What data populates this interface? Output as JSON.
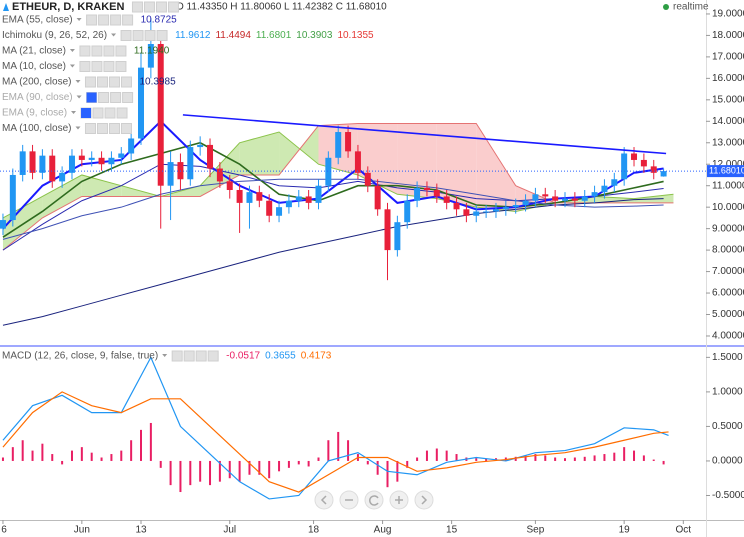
{
  "chart_data": [
    {
      "type": "candlestick",
      "title": "ETHEUR, D, KRAKEN",
      "ohlc_label": "O 11.43350 H 11.80060 L 11.42382 C 11.68010",
      "status": "realtime",
      "xlim": [
        -16.6,
        126.6
      ],
      "ylim": [
        3.58,
        19.65
      ],
      "yticks": [
        {
          "value": 19,
          "label": "19.00000"
        },
        {
          "value": 18,
          "label": "18.00000"
        },
        {
          "value": 17,
          "label": "17.00000"
        },
        {
          "value": 16,
          "label": "16.00000"
        },
        {
          "value": 15,
          "label": "15.00000"
        },
        {
          "value": 14,
          "label": "14.00000"
        },
        {
          "value": 13,
          "label": "13.00000"
        },
        {
          "value": 12,
          "label": "12.00000"
        },
        {
          "value": 11,
          "label": "11.00000"
        },
        {
          "value": 10,
          "label": "10.00000"
        },
        {
          "value": 9,
          "label": "9.00000"
        },
        {
          "value": 8,
          "label": "8.00000"
        },
        {
          "value": 7,
          "label": "7.00000"
        },
        {
          "value": 6,
          "label": "6.00000"
        },
        {
          "value": 5,
          "label": "5.00000"
        },
        {
          "value": 4,
          "label": "4.00000"
        }
      ],
      "grid": false,
      "last_price": {
        "value": 11.6801,
        "label": "11.68010",
        "color": "#2962ff"
      },
      "candles": {
        "up_color": "#2196f3",
        "down_color": "#e8203a",
        "x": [
          -16,
          -14,
          -12,
          -10,
          -8,
          -6,
          -4,
          -2,
          0,
          2,
          4,
          6,
          8,
          10,
          12,
          14,
          16,
          18,
          20,
          22,
          24,
          26,
          28,
          30,
          32,
          34,
          36,
          38,
          40,
          42,
          44,
          46,
          48,
          50,
          52,
          54,
          56,
          58,
          60,
          62,
          64,
          66,
          68,
          70,
          72,
          74,
          76,
          78,
          80,
          82,
          84,
          86,
          88,
          90,
          92,
          94,
          96,
          98,
          100,
          102,
          104,
          106,
          108,
          110,
          112,
          114,
          116,
          118
        ],
        "open": [
          9.0,
          9.4,
          11.5,
          12.6,
          11.6,
          12.4,
          11.2,
          11.6,
          12.4,
          12.2,
          12.3,
          12.0,
          12.3,
          12.5,
          13.2,
          16.5,
          17.6,
          11.0,
          12.1,
          11.3,
          12.8,
          12.9,
          11.8,
          11.2,
          10.8,
          10.2,
          10.7,
          10.3,
          9.6,
          10.0,
          10.3,
          10.5,
          10.2,
          11.0,
          12.3,
          13.5,
          12.6,
          11.6,
          11.0,
          9.9,
          8.0,
          9.3,
          10.3,
          10.9,
          10.8,
          10.5,
          10.2,
          9.9,
          9.6,
          9.8,
          9.8,
          9.9,
          10.0,
          10.1,
          10.3,
          10.6,
          10.5,
          10.3,
          10.4,
          10.3,
          10.5,
          10.7,
          11.0,
          11.3,
          12.5,
          12.2,
          11.9,
          11.43
        ],
        "high": [
          9.7,
          11.8,
          12.9,
          12.9,
          12.7,
          12.7,
          11.9,
          12.7,
          12.7,
          12.6,
          12.6,
          12.6,
          12.8,
          13.5,
          17.2,
          18.8,
          18.2,
          12.6,
          12.5,
          13.1,
          13.3,
          13.2,
          12.1,
          11.5,
          11.1,
          11.0,
          11.0,
          10.6,
          10.3,
          10.6,
          10.8,
          10.8,
          11.3,
          12.6,
          13.8,
          13.8,
          12.9,
          11.9,
          11.3,
          10.2,
          9.6,
          10.6,
          11.2,
          11.2,
          11.1,
          10.8,
          10.5,
          10.2,
          10.1,
          10.1,
          10.2,
          10.3,
          10.4,
          10.6,
          10.9,
          10.9,
          10.8,
          10.7,
          10.7,
          10.8,
          11.0,
          11.3,
          11.6,
          12.8,
          12.8,
          12.5,
          12.2,
          11.8
        ],
        "low": [
          8.7,
          9.1,
          11.2,
          11.3,
          11.3,
          10.9,
          10.9,
          11.3,
          11.9,
          11.9,
          11.7,
          11.7,
          12.0,
          12.2,
          12.9,
          16.0,
          9.0,
          9.4,
          10.8,
          11.0,
          12.4,
          11.4,
          10.9,
          10.4,
          8.8,
          9.0,
          10.0,
          9.3,
          9.3,
          9.7,
          10.0,
          9.9,
          9.9,
          10.7,
          12.0,
          12.3,
          11.3,
          10.7,
          9.6,
          6.6,
          7.7,
          9.0,
          10.0,
          10.5,
          10.2,
          9.9,
          9.6,
          9.3,
          9.3,
          9.5,
          9.5,
          9.6,
          9.7,
          9.8,
          10.0,
          10.2,
          10.0,
          10.0,
          10.0,
          10.0,
          10.2,
          10.4,
          10.7,
          11.0,
          11.9,
          11.6,
          11.3,
          11.42
        ],
        "close": [
          9.4,
          11.5,
          12.6,
          11.6,
          12.4,
          11.2,
          11.6,
          12.4,
          12.2,
          12.3,
          12.0,
          12.3,
          12.5,
          13.2,
          16.5,
          17.6,
          11.0,
          12.1,
          11.3,
          12.8,
          12.9,
          11.8,
          11.2,
          10.8,
          10.2,
          10.7,
          10.3,
          9.6,
          10.0,
          10.3,
          10.5,
          10.2,
          11.0,
          12.3,
          13.5,
          12.6,
          11.6,
          11.0,
          9.9,
          8.0,
          9.3,
          10.3,
          10.9,
          10.8,
          10.5,
          10.2,
          9.9,
          9.6,
          9.8,
          9.8,
          9.9,
          10.0,
          10.1,
          10.3,
          10.6,
          10.5,
          10.3,
          10.4,
          10.3,
          10.5,
          10.7,
          11.0,
          11.3,
          12.5,
          12.2,
          11.9,
          11.6,
          11.68
        ]
      },
      "indicator_x": [
        -16,
        -8,
        0,
        8,
        16,
        24,
        32,
        40,
        48,
        56,
        64,
        72,
        80,
        88,
        96,
        104,
        112,
        118
      ],
      "ichimoku_x": [
        -16,
        -8,
        0,
        8,
        16,
        24,
        32,
        40,
        48,
        56,
        64,
        72,
        80,
        88,
        96,
        104,
        112,
        120
      ],
      "series": [
        {
          "name": "EMA (55, close)",
          "readings": [
            "10.8725"
          ],
          "reading_colors": [
            "#2a2ab0"
          ],
          "color": "#2a2ab0",
          "width": 1,
          "values": [
            8.0,
            9.2,
            10.3,
            11.0,
            12.0,
            11.9,
            11.5,
            11.0,
            10.9,
            11.2,
            10.9,
            10.7,
            10.4,
            10.3,
            10.4,
            10.5,
            10.7,
            10.87
          ]
        },
        {
          "name": "Ichimoku (9, 26, 52, 26)",
          "readings": [
            "11.9612",
            "11.4494",
            "11.6801",
            "10.3903",
            "10.1355"
          ],
          "reading_colors": [
            "#2196f3",
            "#c62828",
            "#4caf50",
            "#43a047",
            "#e53935"
          ],
          "span_a": [
            9.5,
            10.5,
            11.5,
            11.0,
            10.5,
            11.0,
            13.0,
            13.5,
            12.0,
            11.5,
            10.6,
            10.4,
            10.0,
            9.8,
            10.2,
            10.5,
            10.4,
            10.6
          ],
          "span_b": [
            8.0,
            9.5,
            10.5,
            10.5,
            10.5,
            10.5,
            11.5,
            11.5,
            13.8,
            13.9,
            13.9,
            13.9,
            13.9,
            11.0,
            10.2,
            10.2,
            10.2,
            10.2
          ],
          "span_a_color": "#8bc34a",
          "span_b_color": "#e57373",
          "cloud_up": "#c5e5a5",
          "cloud_down": "#f9c4c4"
        },
        {
          "name": "MA (21, close)",
          "readings": [
            "11.1940"
          ],
          "reading_colors": [
            "#2e6b1e"
          ],
          "color": "#2e6b1e",
          "width": 1.6,
          "values": [
            8.6,
            9.8,
            11.2,
            12.0,
            12.5,
            13.0,
            12.0,
            10.6,
            10.3,
            11.0,
            11.0,
            10.8,
            10.1,
            10.0,
            10.2,
            10.5,
            10.9,
            11.2
          ]
        },
        {
          "name": "MA (10, close)",
          "color": "#1a1aff",
          "width": 2,
          "values": [
            9.0,
            11.0,
            12.0,
            12.2,
            14.0,
            12.2,
            11.0,
            10.2,
            10.4,
            11.8,
            10.2,
            10.5,
            9.9,
            10.0,
            10.4,
            10.5,
            11.6,
            11.8
          ]
        },
        {
          "name": "MA (200, close)",
          "readings": [
            "10.3985"
          ],
          "reading_colors": [
            "#1a237e"
          ],
          "color": "#1a237e",
          "width": 1,
          "values": [
            4.5,
            4.9,
            5.4,
            5.9,
            6.4,
            6.9,
            7.4,
            7.9,
            8.3,
            8.7,
            9.1,
            9.4,
            9.7,
            9.9,
            10.1,
            10.2,
            10.35,
            10.4
          ]
        },
        {
          "name": "EMA (90, close)",
          "visible": false
        },
        {
          "name": "EMA (9, close)",
          "visible": false
        },
        {
          "name": "MA (100, close)",
          "color": "#3f51b5",
          "width": 1,
          "values": [
            8.5,
            9.0,
            9.6,
            10.0,
            10.6,
            11.0,
            11.2,
            11.3,
            11.3,
            11.3,
            11.1,
            10.9,
            10.6,
            10.3,
            10.1,
            10.0,
            10.05,
            10.1
          ]
        }
      ],
      "trendline": {
        "x": [
          20.5,
          118.5
        ],
        "values": [
          14.3,
          12.5
        ],
        "color": "#1a1aff"
      }
    },
    {
      "type": "macd",
      "name": "MACD (12, 26, close, 9, false, true)",
      "readings": [
        "-0.0517",
        "0.3655",
        "0.4173"
      ],
      "reading_colors": [
        "#e91e63",
        "#2196f3",
        "#ff6d00"
      ],
      "xlim": [
        -16.6,
        126.6
      ],
      "xticks": [
        {
          "value": -16,
          "label": "6"
        },
        {
          "value": 0,
          "label": "Jun"
        },
        {
          "value": 12,
          "label": "13"
        },
        {
          "value": 30,
          "label": "Jul"
        },
        {
          "value": 47,
          "label": "18"
        },
        {
          "value": 61,
          "label": "Aug"
        },
        {
          "value": 75,
          "label": "15"
        },
        {
          "value": 92,
          "label": "Sep"
        },
        {
          "value": 110,
          "label": "19"
        },
        {
          "value": 122,
          "label": "Oct"
        }
      ],
      "ylim": [
        -0.855,
        1.65
      ],
      "yticks": [
        {
          "value": 1.5,
          "label": "1.5000"
        },
        {
          "value": 1,
          "label": "1.0000"
        },
        {
          "value": 0.5,
          "label": "0.5000"
        },
        {
          "value": 0,
          "label": "0.0000"
        },
        {
          "value": -0.5,
          "label": "-0.5000"
        }
      ],
      "histogram": {
        "color": "#e91e63",
        "values": [
          0.05,
          0.2,
          0.3,
          0.15,
          0.25,
          0.1,
          -0.05,
          0.15,
          0.2,
          0.12,
          0.05,
          0.1,
          0.15,
          0.3,
          0.45,
          0.55,
          -0.1,
          -0.35,
          -0.45,
          -0.35,
          -0.3,
          -0.35,
          -0.3,
          -0.25,
          -0.3,
          -0.2,
          -0.2,
          -0.25,
          -0.15,
          -0.1,
          -0.05,
          -0.08,
          0.05,
          0.3,
          0.42,
          0.3,
          0.1,
          -0.05,
          -0.2,
          -0.38,
          -0.3,
          -0.1,
          0.05,
          0.15,
          0.18,
          0.15,
          0.1,
          0.05,
          0.04,
          0.03,
          0.04,
          0.05,
          0.06,
          0.08,
          0.1,
          0.08,
          0.05,
          0.04,
          0.05,
          0.06,
          0.08,
          0.1,
          0.12,
          0.2,
          0.15,
          0.08,
          0.02,
          -0.05
        ]
      },
      "x": [
        -16,
        -10,
        -4,
        2,
        8,
        14,
        20,
        26,
        32,
        38,
        44,
        50,
        56,
        62,
        68,
        74,
        80,
        86,
        92,
        98,
        104,
        110,
        116,
        119
      ],
      "series": [
        {
          "color": "#2196f3",
          "values": [
            0.3,
            0.8,
            0.95,
            0.7,
            0.7,
            1.5,
            0.5,
            0.1,
            -0.3,
            -0.55,
            -0.5,
            0.0,
            0.12,
            -0.15,
            -0.2,
            -0.02,
            0.05,
            0.0,
            0.12,
            0.15,
            0.25,
            0.48,
            0.45,
            0.37
          ]
        },
        {
          "color": "#ff6d00",
          "values": [
            0.2,
            0.7,
            1.0,
            0.8,
            0.7,
            0.9,
            0.9,
            0.5,
            0.1,
            -0.3,
            -0.45,
            -0.2,
            0.05,
            0.05,
            -0.15,
            -0.1,
            -0.02,
            0.02,
            0.08,
            0.12,
            0.2,
            0.3,
            0.4,
            0.42
          ]
        }
      ]
    }
  ]
}
